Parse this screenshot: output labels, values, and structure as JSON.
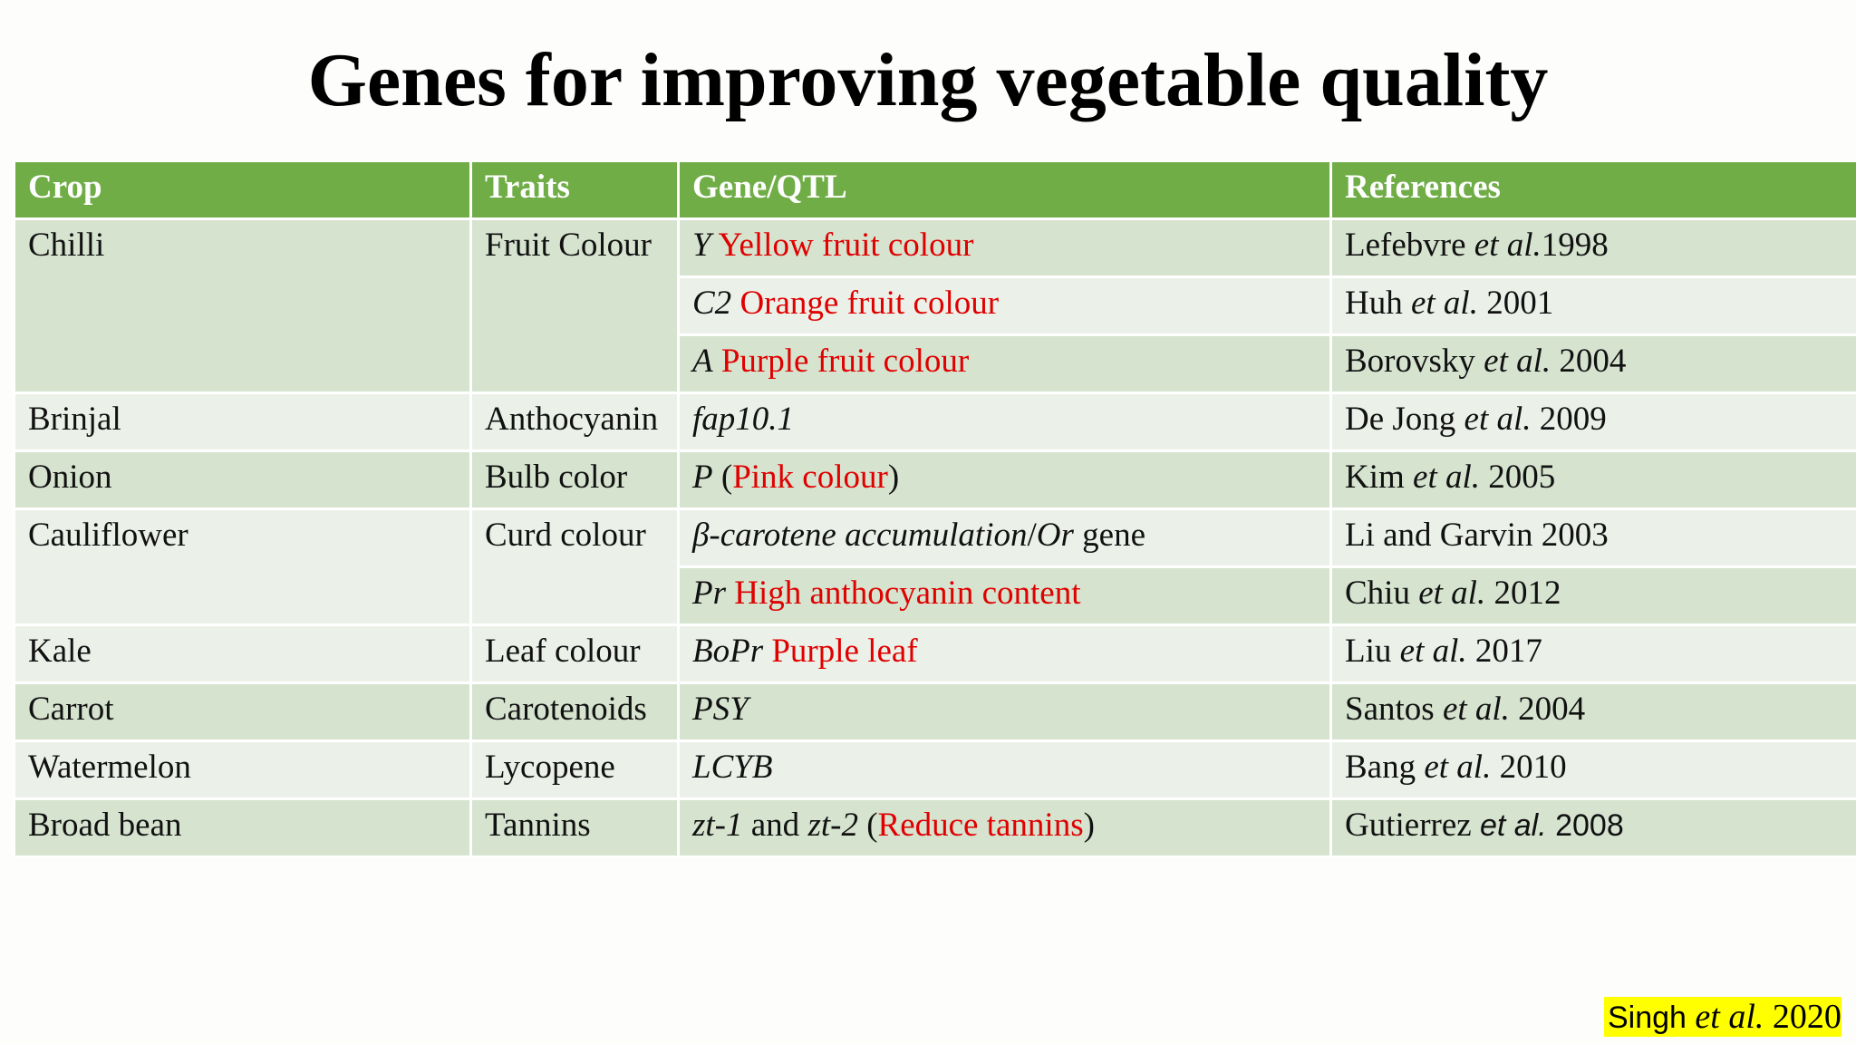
{
  "title": "Genes for improving vegetable quality",
  "table": {
    "header": [
      "Crop",
      "Traits",
      "Gene/QTL",
      "References"
    ],
    "rows": [
      {
        "crop": "Chilli",
        "trait": "Fruit Colour",
        "entries": [
          {
            "gene": [
              "Y",
              " Yellow fruit colour"
            ],
            "reference": [
              "Lefebvre ",
              "et al.",
              "1998"
            ]
          },
          {
            "gene": [
              "C2",
              " Orange fruit colour"
            ],
            "reference": [
              "Huh ",
              "et al.",
              " 2001"
            ]
          },
          {
            "gene": [
              "A",
              " Purple fruit colour"
            ],
            "reference": [
              "Borovsky ",
              "et al.",
              " 2004"
            ]
          }
        ]
      },
      {
        "crop": "Brinjal",
        "trait": "Anthocyanin",
        "entries": [
          {
            "gene": [
              "fap10.1"
            ],
            "reference": [
              "De Jong ",
              "et al.",
              " 2009"
            ]
          }
        ]
      },
      {
        "crop": "Onion",
        "trait": "Bulb color",
        "entries": [
          {
            "gene": [
              "P",
              " (",
              "Pink colour",
              ")"
            ],
            "reference": [
              "Kim ",
              "et al.",
              " 2005"
            ]
          }
        ]
      },
      {
        "crop": "Cauliflower",
        "trait": "Curd colour",
        "entries": [
          {
            "gene": [
              "β-carotene accumulation",
              "/",
              "Or",
              " gene"
            ],
            "reference": [
              "Li and Garvin 2003"
            ]
          },
          {
            "gene": [
              "Pr",
              " High anthocyanin content"
            ],
            "reference": [
              "Chiu ",
              "et al.",
              " 2012"
            ]
          }
        ]
      },
      {
        "crop": "Kale",
        "trait": "Leaf colour",
        "entries": [
          {
            "gene": [
              "BoPr",
              " Purple leaf"
            ],
            "reference": [
              "Liu ",
              "et al.",
              " 2017"
            ]
          }
        ]
      },
      {
        "crop": "Carrot",
        "trait": "Carotenoids",
        "entries": [
          {
            "gene": [
              "PSY"
            ],
            "reference": [
              "Santos ",
              "et al.",
              " 2004"
            ]
          }
        ]
      },
      {
        "crop": "Watermelon",
        "trait": "Lycopene",
        "entries": [
          {
            "gene": [
              "LCYB"
            ],
            "reference": [
              "Bang ",
              "et al.",
              " 2010"
            ]
          }
        ]
      },
      {
        "crop": "Broad bean",
        "trait": "Tannins",
        "entries": [
          {
            "gene": [
              "zt-1",
              " and ",
              "zt-2",
              " (",
              "Reduce tannins",
              ")"
            ],
            "reference": [
              "Gutierrez ",
              "et al.",
              " 2008"
            ]
          }
        ]
      }
    ]
  },
  "citation": [
    "Singh ",
    "et al.",
    " 2020"
  ]
}
